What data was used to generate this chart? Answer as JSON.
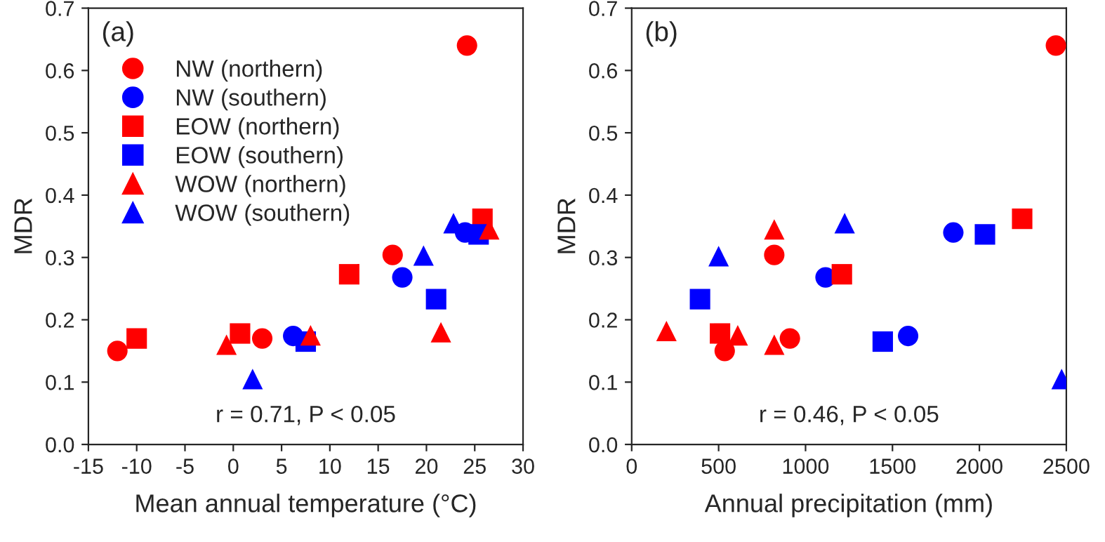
{
  "chart_data": [
    {
      "type": "scatter",
      "xlabel": "Mean annual temperature (°C)",
      "ylabel": "MDR",
      "annotations": [
        "(a)",
        "r = 0.71, P < 0.05"
      ],
      "xlim": [
        -15,
        30
      ],
      "xticks": [
        -15,
        -10,
        -5,
        0,
        5,
        10,
        15,
        20,
        25,
        30
      ],
      "ylim": [
        0,
        0.7
      ],
      "yticks": [
        {
          "value": 0,
          "label": "0.0"
        },
        0.1,
        0.2,
        0.3,
        0.4,
        0.5,
        0.6,
        0.7
      ],
      "grid": false,
      "legend": "top left",
      "series": [
        {
          "name": "NW (northern)",
          "color": "#ff0000",
          "marker": "circle",
          "x": [
            -12,
            3,
            16.5,
            24.2
          ],
          "values": [
            0.15,
            0.17,
            0.304,
            0.64
          ]
        },
        {
          "name": "NW (southern)",
          "color": "#0000ff",
          "marker": "circle",
          "x": [
            6.2,
            17.5,
            24
          ],
          "values": [
            0.174,
            0.268,
            0.34
          ]
        },
        {
          "name": "EOW (northern)",
          "color": "#ff0000",
          "marker": "square",
          "x": [
            -10,
            0.7,
            12,
            25.8
          ],
          "values": [
            0.17,
            0.178,
            0.273,
            0.362
          ]
        },
        {
          "name": "EOW (southern)",
          "color": "#0000ff",
          "marker": "square",
          "x": [
            7.5,
            21,
            25.4
          ],
          "values": [
            0.165,
            0.233,
            0.337
          ]
        },
        {
          "name": "WOW (northern)",
          "color": "#ff0000",
          "marker": "triangle",
          "x": [
            -0.7,
            8,
            21.5,
            26.5
          ],
          "values": [
            0.16,
            0.175,
            0.18,
            0.345
          ]
        },
        {
          "name": "WOW (southern)",
          "color": "#0000ff",
          "marker": "triangle",
          "x": [
            2,
            19.7,
            22.8
          ],
          "values": [
            0.105,
            0.303,
            0.355
          ]
        }
      ]
    },
    {
      "type": "scatter",
      "xlabel": "Annual precipitation (mm)",
      "ylabel": "MDR",
      "annotations": [
        "(b)",
        "r = 0.46, P < 0.05"
      ],
      "xlim": [
        0,
        2500
      ],
      "xticks": [
        0,
        500,
        1000,
        1500,
        2000,
        2500
      ],
      "ylim": [
        0,
        0.7
      ],
      "yticks": [
        {
          "value": 0,
          "label": "0.0"
        },
        0.1,
        0.2,
        0.3,
        0.4,
        0.5,
        0.6,
        0.7
      ],
      "grid": false,
      "legend": false,
      "series": [
        {
          "color": "#ff0000",
          "marker": "circle",
          "x": [
            535,
            910,
            820,
            2440
          ],
          "values": [
            0.15,
            0.17,
            0.304,
            0.64
          ]
        },
        {
          "color": "#0000ff",
          "marker": "circle",
          "x": [
            1115,
            1590,
            1850
          ],
          "values": [
            0.268,
            0.174,
            0.34
          ]
        },
        {
          "color": "#ff0000",
          "marker": "square",
          "x": [
            508,
            1209,
            2246
          ],
          "values": [
            0.178,
            0.273,
            0.362
          ]
        },
        {
          "color": "#0000ff",
          "marker": "square",
          "x": [
            393,
            1444,
            2032
          ],
          "values": [
            0.233,
            0.165,
            0.337
          ]
        },
        {
          "color": "#ff0000",
          "marker": "triangle",
          "x": [
            200,
            610,
            820,
            820
          ],
          "values": [
            0.182,
            0.175,
            0.16,
            0.345
          ]
        },
        {
          "color": "#0000ff",
          "marker": "triangle",
          "x": [
            500,
            1225,
            2473
          ],
          "values": [
            0.302,
            0.355,
            0.105
          ]
        }
      ]
    }
  ]
}
